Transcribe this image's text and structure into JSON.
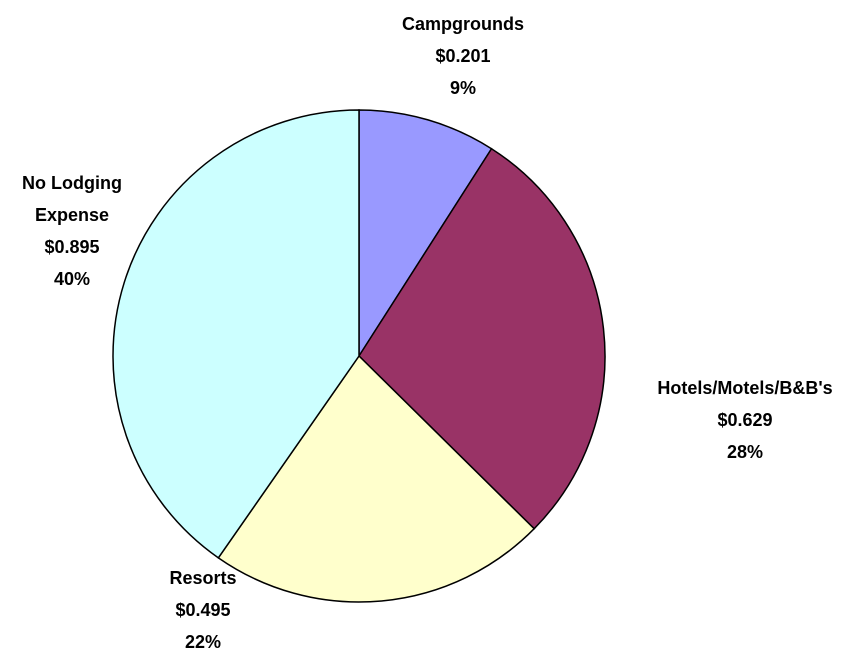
{
  "chart_data": {
    "type": "pie",
    "categories": [
      "Campgrounds",
      "Hotels/Motels/B&B's",
      "Resorts",
      "No Lodging Expense"
    ],
    "values": [
      0.201,
      0.629,
      0.495,
      0.895
    ],
    "value_labels": [
      "$0.201",
      "$0.629",
      "$0.495",
      "$0.895"
    ],
    "percents": [
      9,
      28,
      22,
      40
    ],
    "percent_labels": [
      "9%",
      "28%",
      "22%",
      "40%"
    ],
    "colors": [
      "#9999ff",
      "#993366",
      "#ffffcc",
      "#ccffff"
    ]
  }
}
